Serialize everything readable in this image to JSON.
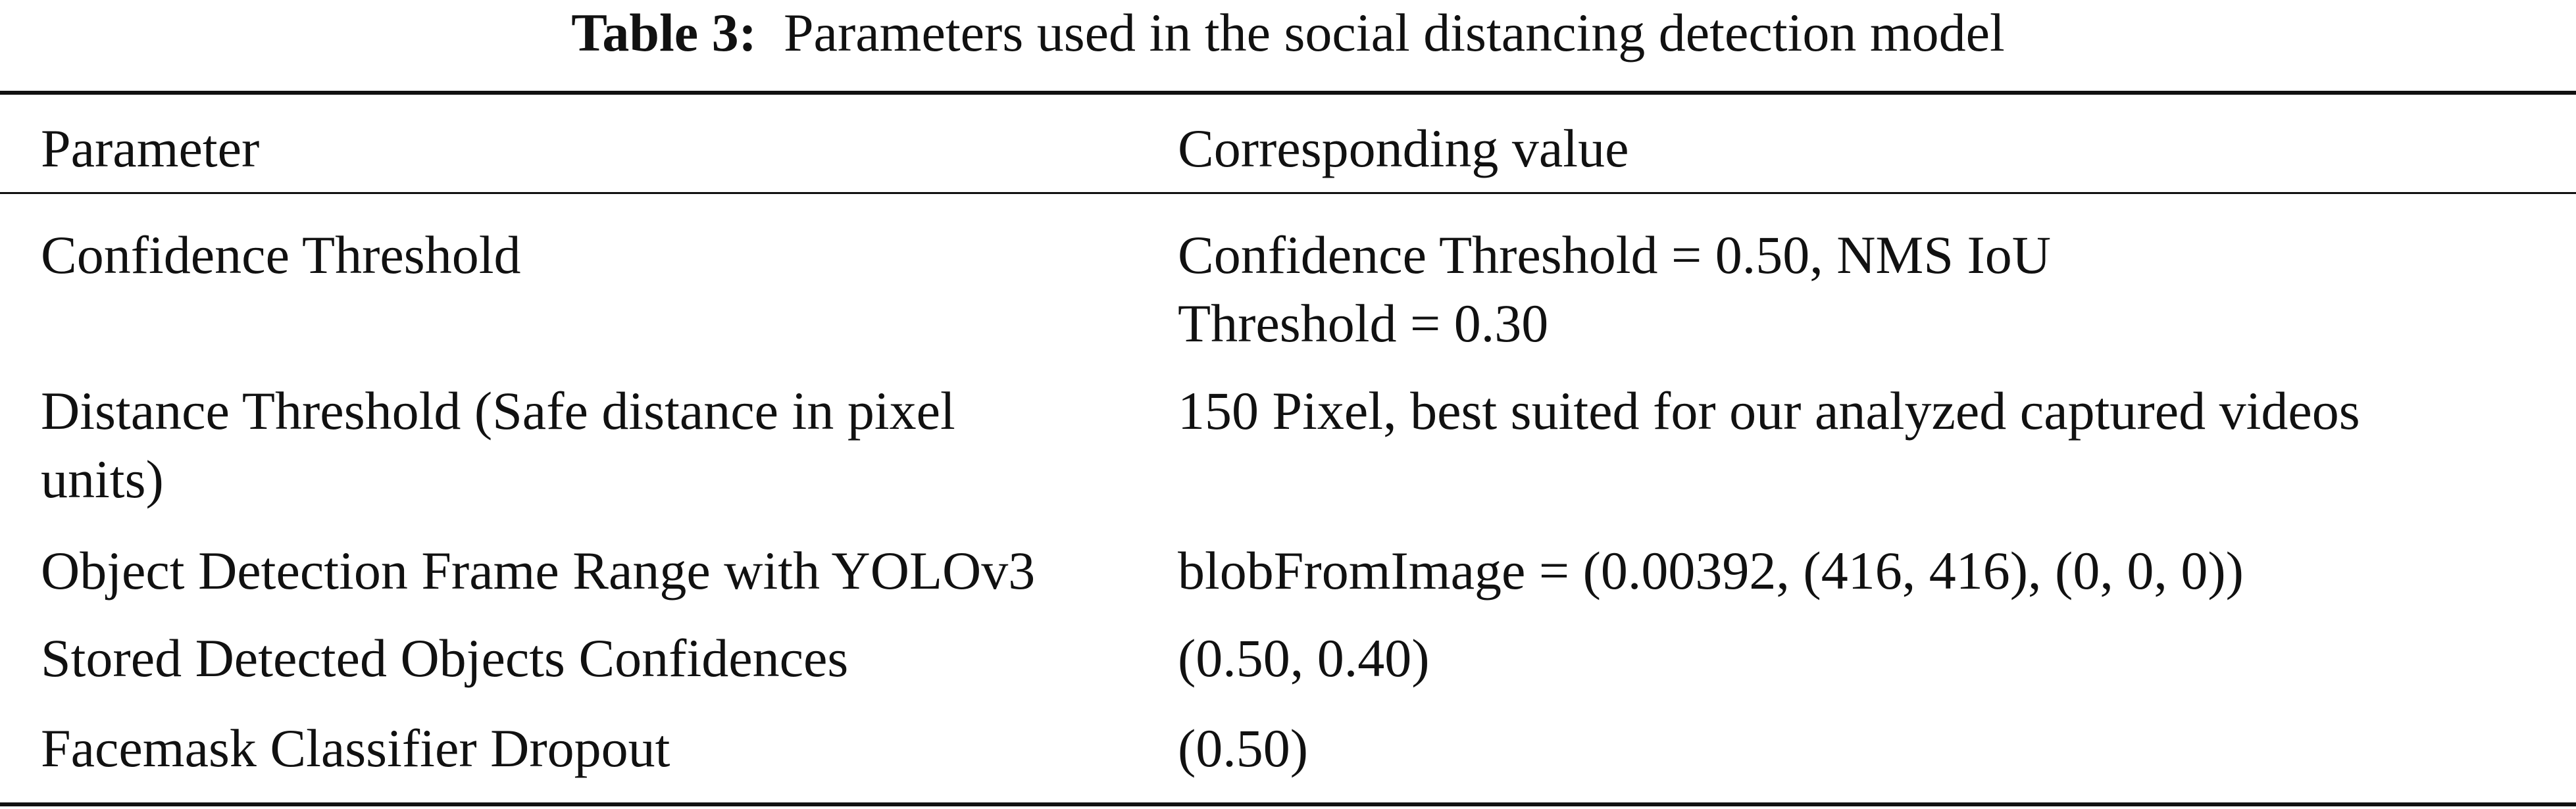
{
  "caption": {
    "label": "Table 3:",
    "text": "Parameters used in the social distancing detection model"
  },
  "table": {
    "headers": [
      "Parameter",
      "Corresponding value"
    ],
    "rows": [
      {
        "parameter": [
          "Confidence Threshold"
        ],
        "value": [
          "Confidence Threshold = 0.50, NMS IoU",
          "Threshold = 0.30"
        ]
      },
      {
        "parameter": [
          "Distance Threshold (Safe distance in pixel",
          "units)"
        ],
        "value": [
          "150 Pixel, best suited for our analyzed captured videos"
        ]
      },
      {
        "parameter": [
          "Object Detection Frame Range with YOLOv3"
        ],
        "value": [
          "blobFromImage = (0.00392, (416, 416), (0, 0, 0))"
        ]
      },
      {
        "parameter": [
          "Stored Detected Objects Confidences"
        ],
        "value": [
          "(0.50, 0.40)"
        ]
      },
      {
        "parameter": [
          "Facemask Classifier Dropout"
        ],
        "value": [
          "(0.50)"
        ]
      }
    ]
  }
}
